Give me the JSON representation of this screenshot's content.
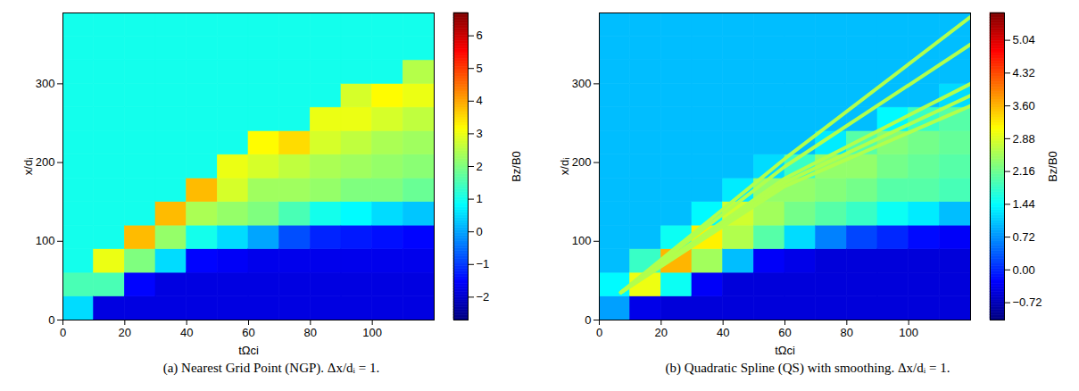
{
  "chart_data": [
    {
      "type": "heatmap",
      "caption": "(a) Nearest Grid Point (NGP). Δx/dᵢ = 1.",
      "x_label": "tΩci",
      "y_label": "x/dᵢ",
      "xlim": [
        0,
        120
      ],
      "ylim": [
        0,
        390
      ],
      "xticks": [
        0,
        20,
        40,
        60,
        80,
        100
      ],
      "yticks": [
        0,
        100,
        200,
        300
      ],
      "t_edges": [
        0,
        10,
        20,
        30,
        40,
        50,
        60,
        70,
        80,
        90,
        100,
        110,
        120
      ],
      "x_edges": [
        0,
        30,
        60,
        90,
        120,
        150,
        180,
        210,
        240,
        270,
        300,
        330,
        360,
        390
      ],
      "values_by_t": [
        [
          0.5,
          1.5,
          1,
          1,
          1,
          1,
          1,
          1,
          1,
          1,
          1,
          1,
          1
        ],
        [
          -1.8,
          1.5,
          3.0,
          1,
          1,
          1,
          1,
          1,
          1,
          1,
          1,
          1,
          1
        ],
        [
          -1.8,
          -1.5,
          2.0,
          3.8,
          1,
          1,
          1,
          1,
          1,
          1,
          1,
          1,
          1
        ],
        [
          -1.8,
          -1.8,
          0.5,
          2.2,
          3.8,
          1,
          1,
          1,
          1,
          1,
          1,
          1,
          1
        ],
        [
          -1.8,
          -1.8,
          -1.5,
          1.0,
          2.4,
          3.8,
          1,
          1,
          1,
          1,
          1,
          1,
          1
        ],
        [
          -1.8,
          -1.8,
          -1.6,
          0.5,
          2.2,
          2.8,
          3.0,
          1,
          1,
          1,
          1,
          1,
          1
        ],
        [
          -1.8,
          -1.8,
          -1.7,
          0.0,
          2.0,
          2.3,
          2.8,
          3.2,
          1,
          1,
          1,
          1,
          1
        ],
        [
          -1.8,
          -1.8,
          -1.7,
          -0.8,
          1.5,
          2.3,
          2.6,
          3.5,
          1,
          1,
          1,
          1,
          1
        ],
        [
          -1.8,
          -1.8,
          -1.7,
          -1.2,
          1.0,
          2.2,
          2.4,
          2.8,
          3.0,
          1,
          1,
          1,
          1
        ],
        [
          -1.8,
          -1.8,
          -1.7,
          -1.3,
          0.8,
          2.0,
          2.3,
          2.6,
          3.0,
          2.8,
          1,
          1,
          1
        ],
        [
          -1.8,
          -1.8,
          -1.7,
          -1.4,
          0.5,
          2.0,
          2.2,
          2.4,
          2.8,
          3.2,
          1,
          1,
          1
        ],
        [
          -1.8,
          -1.8,
          -1.7,
          -1.5,
          0.3,
          1.8,
          2.1,
          2.3,
          2.6,
          3.0,
          2.5,
          1,
          1
        ]
      ],
      "colorbar": {
        "label": "Bz/B0",
        "range": [
          -2.7,
          6.7
        ],
        "ticks": [
          {
            "value": -2,
            "label": "−2"
          },
          {
            "value": -1,
            "label": "−1"
          },
          0,
          1,
          2,
          3,
          4,
          5,
          6
        ]
      }
    },
    {
      "type": "heatmap",
      "caption": "(b) Quadratic Spline (QS) with smoothing. Δx/dᵢ = 1.",
      "x_label": "tΩci",
      "y_label": "x/dᵢ",
      "xlim": [
        0,
        120
      ],
      "ylim": [
        0,
        390
      ],
      "xticks": [
        0,
        20,
        40,
        60,
        80,
        100
      ],
      "yticks": [
        0,
        100,
        200,
        300
      ],
      "t_edges": [
        0,
        10,
        20,
        30,
        40,
        50,
        60,
        70,
        80,
        90,
        100,
        110,
        120
      ],
      "x_edges": [
        0,
        30,
        60,
        90,
        120,
        150,
        180,
        210,
        240,
        270,
        300,
        330,
        360,
        390
      ],
      "values_by_t": [
        [
          0.8,
          1.4,
          1,
          1,
          1,
          1,
          1,
          1,
          1,
          1,
          1,
          1,
          1
        ],
        [
          -0.4,
          3.0,
          1.8,
          1,
          1,
          1,
          1,
          1,
          1,
          1,
          1,
          1,
          1
        ],
        [
          -0.5,
          1.5,
          3.6,
          1.5,
          1,
          1,
          1,
          1,
          1,
          1,
          1,
          1,
          1
        ],
        [
          -0.5,
          -0.3,
          2.5,
          3.2,
          1.4,
          1,
          1,
          1,
          1,
          1,
          1,
          1,
          1
        ],
        [
          -0.5,
          -0.5,
          1.0,
          2.6,
          2.8,
          1.3,
          1,
          1,
          1,
          1,
          1,
          1,
          1
        ],
        [
          -0.5,
          -0.5,
          -0.3,
          2.0,
          2.5,
          2.4,
          1.2,
          1,
          1,
          1,
          1,
          1,
          1
        ],
        [
          -0.5,
          -0.5,
          -0.4,
          1.2,
          2.2,
          2.4,
          1.8,
          1,
          1,
          1,
          1,
          1,
          1
        ],
        [
          -0.5,
          -0.5,
          -0.5,
          0.6,
          2.0,
          2.3,
          2.4,
          1.3,
          1,
          1,
          1,
          1,
          1
        ],
        [
          -0.5,
          -0.5,
          -0.5,
          0.2,
          1.8,
          2.2,
          2.4,
          2.0,
          1,
          1,
          1,
          1,
          1
        ],
        [
          -0.5,
          -0.5,
          -0.5,
          0.0,
          1.5,
          2.0,
          2.2,
          2.3,
          1.4,
          1,
          1,
          1,
          1
        ],
        [
          -0.5,
          -0.5,
          -0.5,
          -0.2,
          1.3,
          2.0,
          2.1,
          2.2,
          1.8,
          1,
          1,
          1,
          1
        ],
        [
          -0.5,
          -0.5,
          -0.5,
          -0.3,
          1.0,
          1.9,
          2.0,
          2.1,
          2.0,
          1.2,
          1,
          1,
          1
        ]
      ],
      "ridges": [
        {
          "t": [
            7,
            60,
            120
          ],
          "x": [
            35,
            205,
            385
          ],
          "value": 2.6
        },
        {
          "t": [
            7,
            60,
            120
          ],
          "x": [
            35,
            195,
            350
          ],
          "value": 2.6
        },
        {
          "t": [
            7,
            60,
            120
          ],
          "x": [
            35,
            180,
            300
          ],
          "value": 2.6
        },
        {
          "t": [
            7,
            60,
            120
          ],
          "x": [
            35,
            175,
            285
          ],
          "value": 2.6
        },
        {
          "t": [
            7,
            60,
            120
          ],
          "x": [
            35,
            170,
            272
          ],
          "value": 2.6
        }
      ],
      "colorbar": {
        "label": "Bz/B0",
        "range": [
          -1.1,
          5.64
        ],
        "ticks": [
          {
            "value": -0.72,
            "label": "−0.72"
          },
          {
            "value": 0,
            "label": "0.00"
          },
          0.72,
          1.44,
          2.16,
          2.88,
          {
            "value": 3.6,
            "label": "3.60"
          },
          4.32,
          5.04
        ]
      }
    }
  ]
}
